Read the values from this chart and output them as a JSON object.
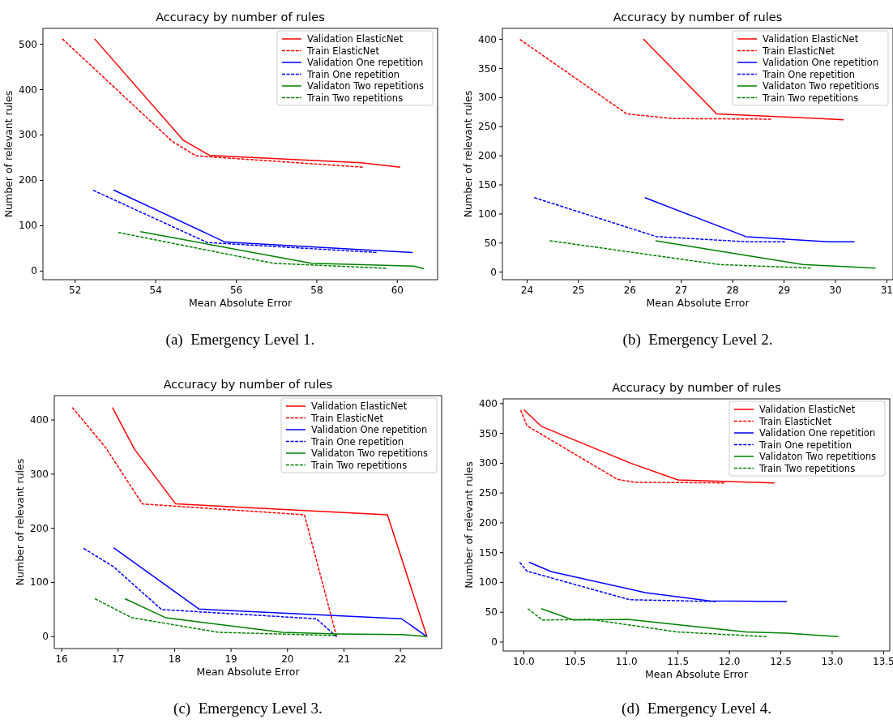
{
  "chart_data": [
    {
      "type": "line",
      "title": "Accuracy by number of rules",
      "xlabel": "Mean Absolute Error",
      "ylabel": "Number of relevant rules",
      "annotations": [
        "(a)  Emergency Level 1."
      ],
      "xlim": [
        51.2,
        61.0
      ],
      "ylim": [
        -19,
        535
      ],
      "xticks": [
        52,
        54,
        56,
        58,
        60
      ],
      "yticks": [
        0,
        100,
        200,
        300,
        400,
        500
      ],
      "legend": "top right",
      "series": [
        {
          "name": "Validation ElasticNet",
          "color": "#ff0000",
          "line_style": "solid",
          "x": [
            52.48,
            54.69,
            55.34,
            59.1,
            60.07
          ],
          "values": [
            512,
            288,
            255,
            239,
            229
          ]
        },
        {
          "name": "Train ElasticNet",
          "color": "#ff0000",
          "line_style": "dashed",
          "x": [
            51.68,
            54.41,
            55.0,
            59.14
          ],
          "values": [
            512,
            286,
            254,
            229
          ]
        },
        {
          "name": "Validation One repetition",
          "color": "#0000ff",
          "line_style": "solid",
          "x": [
            52.95,
            55.72,
            60.38
          ],
          "values": [
            179,
            64,
            41
          ]
        },
        {
          "name": "Train One repetition",
          "color": "#0000ff",
          "line_style": "dashed",
          "x": [
            52.45,
            55.28,
            59.48
          ],
          "values": [
            178,
            63,
            41
          ]
        },
        {
          "name": "Validaton Two repetitions",
          "color": "#008000",
          "line_style": "solid",
          "x": [
            53.62,
            57.86,
            60.41,
            60.66
          ],
          "values": [
            87,
            17,
            11,
            5
          ]
        },
        {
          "name": "Train Two repetitions",
          "color": "#008000",
          "line_style": "dashed",
          "x": [
            53.07,
            56.93,
            59.72
          ],
          "values": [
            85,
            17,
            6
          ]
        }
      ]
    },
    {
      "type": "line",
      "title": "Accuracy by number of rules",
      "xlabel": "Mean Absolute Error",
      "ylabel": "Number of relevant rules",
      "annotations": [
        "(b)  Emergency Level 2."
      ],
      "xlim": [
        23.52,
        31.12
      ],
      "ylim": [
        -13,
        419
      ],
      "xticks": [
        24,
        25,
        26,
        27,
        28,
        29,
        30,
        31
      ],
      "yticks": [
        0,
        50,
        100,
        150,
        200,
        250,
        300,
        350,
        400
      ],
      "legend": "top right",
      "series": [
        {
          "name": "Validation ElasticNet",
          "color": "#ff0000",
          "line_style": "solid",
          "x": [
            26.26,
            27.69,
            30.16
          ],
          "values": [
            401,
            272,
            262
          ]
        },
        {
          "name": "Train ElasticNet",
          "color": "#ff0000",
          "line_style": "dashed",
          "x": [
            23.86,
            25.94,
            26.84,
            28.75
          ],
          "values": [
            400,
            272,
            264,
            263
          ]
        },
        {
          "name": "Validation One repetition",
          "color": "#0000ff",
          "line_style": "solid",
          "x": [
            26.29,
            28.26,
            29.87,
            30.37
          ],
          "values": [
            128,
            61,
            52,
            52
          ]
        },
        {
          "name": "Train One repetition",
          "color": "#0000ff",
          "line_style": "dashed",
          "x": [
            24.14,
            26.52,
            28.32,
            29.02
          ],
          "values": [
            128,
            61,
            52,
            52
          ]
        },
        {
          "name": "Validaton Two repetitions",
          "color": "#008000",
          "line_style": "solid",
          "x": [
            26.5,
            29.36,
            30.78
          ],
          "values": [
            54,
            13,
            7
          ]
        },
        {
          "name": "Train Two repetitions",
          "color": "#008000",
          "line_style": "dashed",
          "x": [
            24.44,
            27.74,
            29.52
          ],
          "values": [
            54,
            13,
            7
          ]
        }
      ]
    },
    {
      "type": "line",
      "title": "Accuracy by number of rules",
      "xlabel": "Mean Absolute Error",
      "ylabel": "Number of relevant rules",
      "annotations": [
        "(c)  Emergency Level 3."
      ],
      "xlim": [
        15.87,
        22.73
      ],
      "ylim": [
        -22,
        445
      ],
      "xticks": [
        16,
        17,
        18,
        19,
        20,
        21,
        22
      ],
      "yticks": [
        0,
        100,
        200,
        300,
        400
      ],
      "legend": "top right",
      "series": [
        {
          "name": "Validation ElasticNet",
          "color": "#ff0000",
          "line_style": "solid",
          "x": [
            16.9,
            17.29,
            18.02,
            21.77,
            22.47
          ],
          "values": [
            423,
            346,
            245,
            225,
            0
          ]
        },
        {
          "name": "Train ElasticNet",
          "color": "#ff0000",
          "line_style": "dashed",
          "x": [
            16.19,
            16.78,
            17.43,
            20.3,
            20.87
          ],
          "values": [
            423,
            349,
            245,
            225,
            0
          ]
        },
        {
          "name": "Validation One repetition",
          "color": "#0000ff",
          "line_style": "solid",
          "x": [
            16.92,
            18.43,
            22.02,
            22.47
          ],
          "values": [
            164,
            51,
            33,
            0
          ]
        },
        {
          "name": "Train One repetition",
          "color": "#0000ff",
          "line_style": "dashed",
          "x": [
            16.39,
            16.92,
            17.77,
            20.51,
            20.87
          ],
          "values": [
            163,
            129,
            50,
            33,
            0
          ]
        },
        {
          "name": "Validaton Two repetitions",
          "color": "#008000",
          "line_style": "solid",
          "x": [
            17.12,
            17.84,
            19.91,
            20.87,
            22.03,
            22.47
          ],
          "values": [
            70,
            35,
            8,
            5,
            4,
            0
          ]
        },
        {
          "name": "Train Two repetitions",
          "color": "#008000",
          "line_style": "dashed",
          "x": [
            16.59,
            17.24,
            18.78,
            20.85
          ],
          "values": [
            70,
            35,
            8,
            2
          ]
        }
      ]
    },
    {
      "type": "line",
      "title": "Accuracy by number of rules",
      "xlabel": "Mean Absolute Error",
      "ylabel": "Number of relevant rules",
      "annotations": [
        "(d)  Emergency Level 4."
      ],
      "xlim": [
        9.8,
        13.56
      ],
      "ylim": [
        -15,
        408
      ],
      "xticks": [
        {
          "value": 10,
          "label": "10.0"
        },
        10.5,
        {
          "value": 11,
          "label": "11.0"
        },
        11.5,
        {
          "value": 12,
          "label": "12.0"
        },
        12.5,
        {
          "value": 13,
          "label": "13.0"
        },
        13.5
      ],
      "yticks": [
        0,
        50,
        100,
        150,
        200,
        250,
        300,
        350,
        400
      ],
      "legend": "top right",
      "series": [
        {
          "name": "Validation ElasticNet",
          "color": "#ff0000",
          "line_style": "solid",
          "x": [
            10.0,
            10.17,
            11.04,
            11.5,
            12.44
          ],
          "values": [
            390,
            362,
            300,
            272,
            267
          ]
        },
        {
          "name": "Train ElasticNet",
          "color": "#ff0000",
          "line_style": "dashed",
          "x": [
            9.97,
            10.03,
            10.91,
            11.08,
            11.95
          ],
          "values": [
            389,
            363,
            273,
            268,
            267
          ]
        },
        {
          "name": "Validation One repetition",
          "color": "#0000ff",
          "line_style": "solid",
          "x": [
            10.05,
            10.27,
            11.18,
            11.81,
            12.56
          ],
          "values": [
            134,
            118,
            83,
            69,
            68
          ]
        },
        {
          "name": "Train One repetition",
          "color": "#0000ff",
          "line_style": "dashed",
          "x": [
            9.96,
            10.03,
            11.03,
            11.87
          ],
          "values": [
            134,
            119,
            71,
            68
          ]
        },
        {
          "name": "Validaton Two repetitions",
          "color": "#008000",
          "line_style": "solid",
          "x": [
            10.17,
            10.48,
            11.01,
            12.16,
            12.56,
            13.06
          ],
          "values": [
            56,
            37,
            38,
            17,
            15,
            9
          ]
        },
        {
          "name": "Train Two repetitions",
          "color": "#008000",
          "line_style": "dashed",
          "x": [
            10.04,
            10.18,
            10.65,
            11.49,
            12.36
          ],
          "values": [
            56,
            37,
            38,
            17,
            9
          ]
        }
      ]
    }
  ]
}
